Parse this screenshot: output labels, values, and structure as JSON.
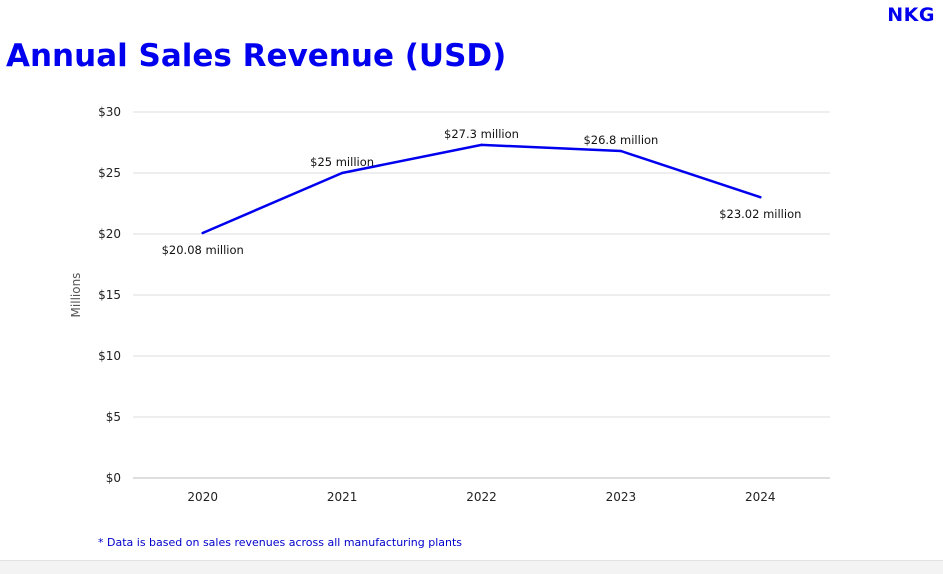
{
  "brand": {
    "logo_text": "NKG",
    "accent_color": "#0000ee"
  },
  "footnote": "* Data is based on sales revenues across all manufacturing plants",
  "chart_data": {
    "type": "line",
    "title": "Annual Sales Revenue (USD)",
    "xlabel": "",
    "ylabel": "Millions",
    "categories": [
      "2020",
      "2021",
      "2022",
      "2023",
      "2024"
    ],
    "series": [
      {
        "values": [
          20.08,
          25,
          27.3,
          26.8,
          23.02
        ],
        "data_labels": [
          "$20.08 million",
          "$25 million",
          "$27.3 million",
          "$26.8 million",
          "$23.02 million"
        ],
        "color": "#0000ee"
      }
    ],
    "ylim": [
      0,
      30
    ],
    "yticks": [
      0,
      5,
      10,
      15,
      20,
      25,
      30
    ],
    "ytick_labels": [
      "$0",
      "$5",
      "$10",
      "$15",
      "$20",
      "$25",
      "$30"
    ],
    "grid": true,
    "legend": "none"
  }
}
